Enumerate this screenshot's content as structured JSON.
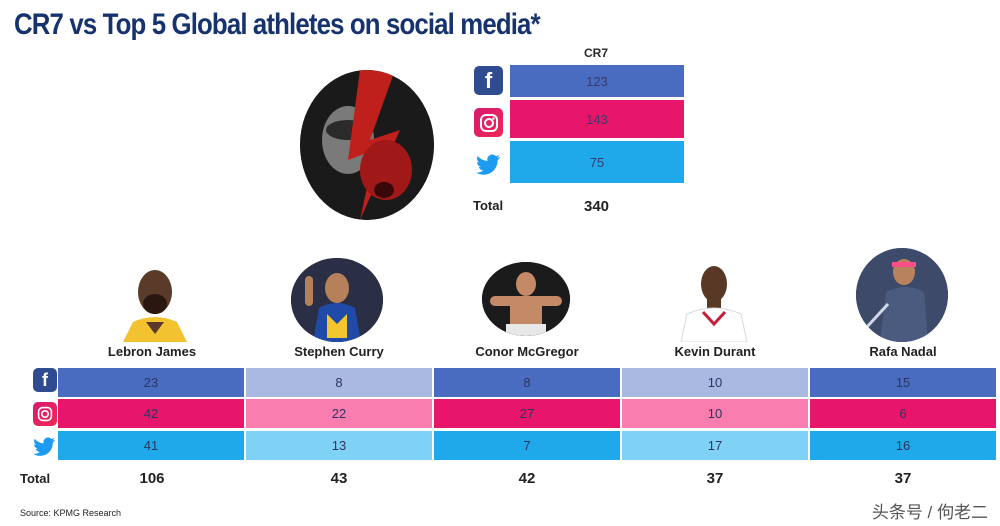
{
  "title": "CR7 vs Top 5 Global athletes on social media*",
  "cr7": {
    "header": "CR7",
    "facebook": "123",
    "instagram": "143",
    "twitter": "75",
    "total_label": "Total",
    "total": "340"
  },
  "colors": {
    "facebook_dark": "#4a6cc0",
    "facebook_light": "#a9b9e2",
    "instagram_dark": "#e8166a",
    "instagram_light": "#f97dae",
    "twitter_dark": "#1fa9eb",
    "twitter_light": "#7fd2f5"
  },
  "athletes": [
    {
      "name": "Lebron James",
      "facebook": "23",
      "instagram": "42",
      "twitter": "41",
      "total": "106"
    },
    {
      "name": "Stephen Curry",
      "facebook": "8",
      "instagram": "22",
      "twitter": "13",
      "total": "43"
    },
    {
      "name": "Conor McGregor",
      "facebook": "8",
      "instagram": "27",
      "twitter": "7",
      "total": "42"
    },
    {
      "name": "Kevin Durant",
      "facebook": "10",
      "instagram": "10",
      "twitter": "17",
      "total": "37"
    },
    {
      "name": "Rafa Nadal",
      "facebook": "15",
      "instagram": "6",
      "twitter": "16",
      "total": "37"
    }
  ],
  "total_label": "Total",
  "source": "Source: KPMG Research",
  "watermark": "头条号 / 佝老二",
  "chart_data": {
    "type": "table",
    "title": "CR7 vs Top 5 Global athletes on social media*",
    "categories": [
      "CR7",
      "Lebron James",
      "Stephen Curry",
      "Conor McGregor",
      "Kevin Durant",
      "Rafa Nadal"
    ],
    "series": [
      {
        "name": "Facebook",
        "values": [
          123,
          23,
          8,
          8,
          10,
          15
        ]
      },
      {
        "name": "Instagram",
        "values": [
          143,
          42,
          22,
          27,
          10,
          6
        ]
      },
      {
        "name": "Twitter",
        "values": [
          75,
          41,
          13,
          7,
          17,
          16
        ]
      }
    ],
    "totals": [
      340,
      106,
      43,
      42,
      37,
      37
    ]
  }
}
